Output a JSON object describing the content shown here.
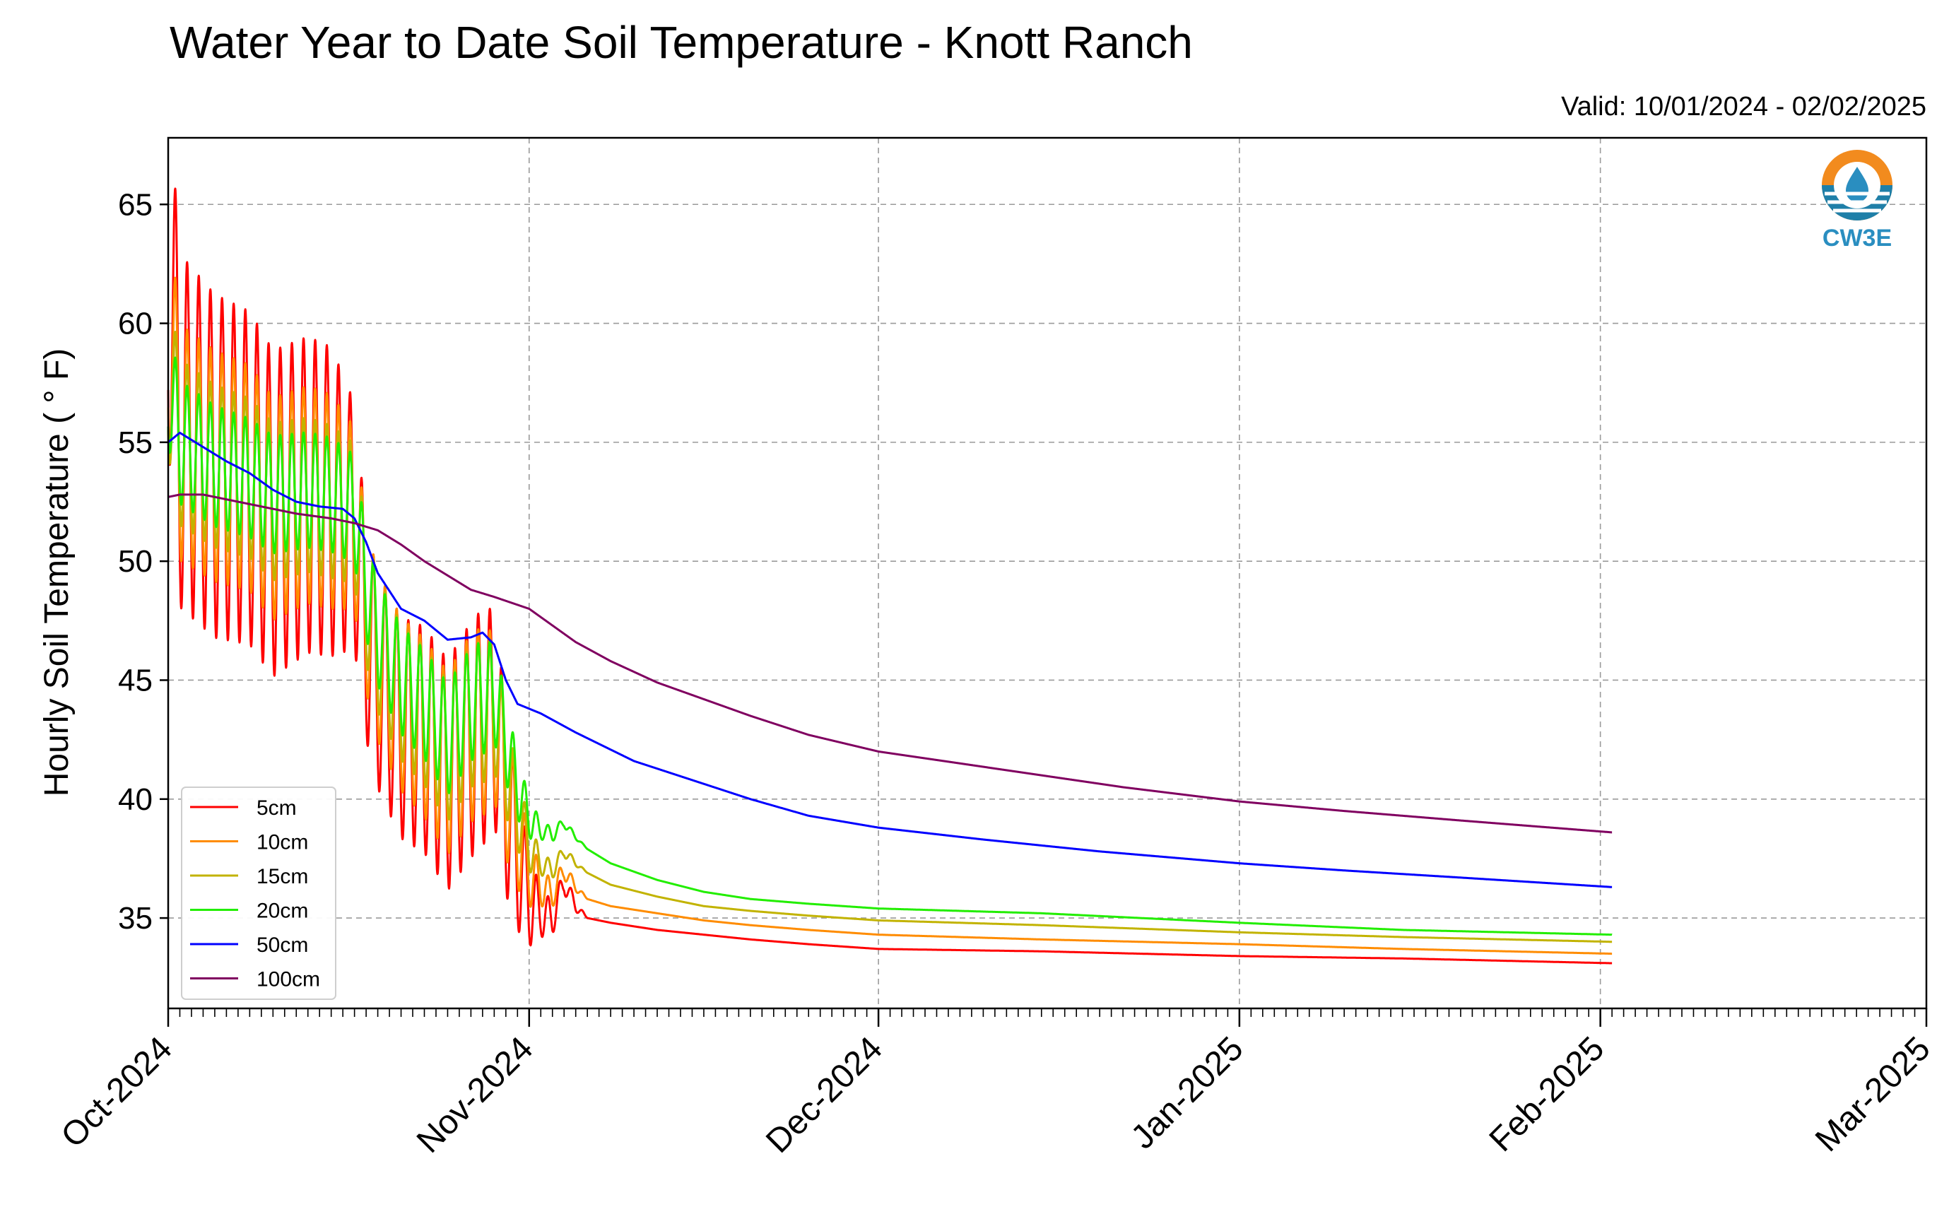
{
  "chart_data": {
    "type": "line",
    "title": "Water Year to Date Soil Temperature - Knott Ranch",
    "subtitle": "Valid: 10/01/2024 - 02/02/2025",
    "ylabel": "Hourly Soil Temperature ( ° F)",
    "xlabel": "",
    "x_axis_type": "date",
    "xlim": [
      "2024-10-01",
      "2025-03-01"
    ],
    "ylim": [
      31.2,
      67.8
    ],
    "yticks": [
      35,
      40,
      45,
      50,
      55,
      60,
      65
    ],
    "xticks": [
      {
        "date": "2024-10-01",
        "label": "Oct-2024"
      },
      {
        "date": "2024-11-01",
        "label": "Nov-2024"
      },
      {
        "date": "2024-12-01",
        "label": "Dec-2024"
      },
      {
        "date": "2025-01-01",
        "label": "Jan-2025"
      },
      {
        "date": "2025-02-01",
        "label": "Feb-2025"
      },
      {
        "date": "2025-03-01",
        "label": "Mar-2025"
      }
    ],
    "grid": true,
    "legend_position": "lower-left",
    "logo_text": "CW3E",
    "series": [
      {
        "name": "5cm",
        "color": "#ff0000",
        "daily_amplitude": [
          [
            0,
            7.5
          ],
          [
            14,
            6.5
          ],
          [
            17,
            4.5
          ],
          [
            27,
            5
          ],
          [
            29,
            4
          ],
          [
            32,
            1
          ],
          [
            36,
            0
          ]
        ],
        "points": [
          [
            "2024-10-01",
            62.5
          ],
          [
            "2024-10-02",
            55.5
          ],
          [
            "2024-10-05",
            54
          ],
          [
            "2024-10-08",
            53.5
          ],
          [
            "2024-10-10",
            52
          ],
          [
            "2024-10-13",
            52.8
          ],
          [
            "2024-10-15",
            52.5
          ],
          [
            "2024-10-17",
            51.5
          ],
          [
            "2024-10-18",
            47
          ],
          [
            "2024-10-19",
            45
          ],
          [
            "2024-10-21",
            43
          ],
          [
            "2024-10-23",
            42.5
          ],
          [
            "2024-10-25",
            41
          ],
          [
            "2024-10-27",
            42.5
          ],
          [
            "2024-10-29",
            43.5
          ],
          [
            "2024-10-30",
            40
          ],
          [
            "2024-10-31",
            37.5
          ],
          [
            "2024-11-01",
            35.8
          ],
          [
            "2024-11-02",
            35.2
          ],
          [
            "2024-11-03",
            35
          ],
          [
            "2024-11-04",
            36.5
          ],
          [
            "2024-11-05",
            35.5
          ],
          [
            "2024-11-06",
            35
          ],
          [
            "2024-11-08",
            34.8
          ],
          [
            "2024-11-12",
            34.5
          ],
          [
            "2024-11-16",
            34.3
          ],
          [
            "2024-11-20",
            34.1
          ],
          [
            "2024-11-25",
            33.9
          ],
          [
            "2024-12-01",
            33.7
          ],
          [
            "2024-12-15",
            33.6
          ],
          [
            "2025-01-01",
            33.4
          ],
          [
            "2025-01-15",
            33.3
          ],
          [
            "2025-02-02",
            33.1
          ]
        ]
      },
      {
        "name": "10cm",
        "color": "#ff8c00",
        "daily_amplitude": [
          [
            0,
            5
          ],
          [
            14,
            4.5
          ],
          [
            17,
            3.5
          ],
          [
            27,
            4
          ],
          [
            29,
            3
          ],
          [
            32,
            0.8
          ],
          [
            36,
            0
          ]
        ],
        "points": [
          [
            "2024-10-01",
            60
          ],
          [
            "2024-10-02",
            55
          ],
          [
            "2024-10-05",
            54
          ],
          [
            "2024-10-08",
            53.5
          ],
          [
            "2024-10-10",
            52.2
          ],
          [
            "2024-10-13",
            52.8
          ],
          [
            "2024-10-15",
            52.5
          ],
          [
            "2024-10-17",
            51.8
          ],
          [
            "2024-10-18",
            48
          ],
          [
            "2024-10-19",
            46
          ],
          [
            "2024-10-21",
            44
          ],
          [
            "2024-10-23",
            43
          ],
          [
            "2024-10-25",
            41.5
          ],
          [
            "2024-10-27",
            43
          ],
          [
            "2024-10-29",
            43.5
          ],
          [
            "2024-10-30",
            40.5
          ],
          [
            "2024-10-31",
            38.5
          ],
          [
            "2024-11-01",
            37
          ],
          [
            "2024-11-02",
            36.3
          ],
          [
            "2024-11-03",
            36
          ],
          [
            "2024-11-04",
            37
          ],
          [
            "2024-11-05",
            36.3
          ],
          [
            "2024-11-06",
            35.8
          ],
          [
            "2024-11-08",
            35.5
          ],
          [
            "2024-11-12",
            35.2
          ],
          [
            "2024-11-16",
            34.9
          ],
          [
            "2024-11-20",
            34.7
          ],
          [
            "2024-11-25",
            34.5
          ],
          [
            "2024-12-01",
            34.3
          ],
          [
            "2024-12-15",
            34.1
          ],
          [
            "2025-01-01",
            33.9
          ],
          [
            "2025-01-15",
            33.7
          ],
          [
            "2025-02-02",
            33.5
          ]
        ]
      },
      {
        "name": "15cm",
        "color": "#c2b300",
        "daily_amplitude": [
          [
            0,
            3.5
          ],
          [
            14,
            3.2
          ],
          [
            17,
            2.8
          ],
          [
            27,
            3
          ],
          [
            29,
            2.2
          ],
          [
            32,
            0.5
          ],
          [
            36,
            0
          ]
        ],
        "points": [
          [
            "2024-10-01",
            58
          ],
          [
            "2024-10-02",
            55
          ],
          [
            "2024-10-05",
            54
          ],
          [
            "2024-10-08",
            53.5
          ],
          [
            "2024-10-10",
            52.5
          ],
          [
            "2024-10-13",
            52.8
          ],
          [
            "2024-10-15",
            52.5
          ],
          [
            "2024-10-17",
            52
          ],
          [
            "2024-10-18",
            48.5
          ],
          [
            "2024-10-19",
            46.5
          ],
          [
            "2024-10-21",
            44.5
          ],
          [
            "2024-10-23",
            43.5
          ],
          [
            "2024-10-25",
            42
          ],
          [
            "2024-10-27",
            43.5
          ],
          [
            "2024-10-29",
            43.8
          ],
          [
            "2024-10-30",
            41.5
          ],
          [
            "2024-10-31",
            39.5
          ],
          [
            "2024-11-01",
            38
          ],
          [
            "2024-11-02",
            37.3
          ],
          [
            "2024-11-03",
            37
          ],
          [
            "2024-11-04",
            37.8
          ],
          [
            "2024-11-05",
            37.3
          ],
          [
            "2024-11-06",
            36.9
          ],
          [
            "2024-11-08",
            36.4
          ],
          [
            "2024-11-12",
            35.9
          ],
          [
            "2024-11-16",
            35.5
          ],
          [
            "2024-11-20",
            35.3
          ],
          [
            "2024-11-25",
            35.1
          ],
          [
            "2024-12-01",
            34.9
          ],
          [
            "2024-12-15",
            34.7
          ],
          [
            "2025-01-01",
            34.4
          ],
          [
            "2025-01-15",
            34.2
          ],
          [
            "2025-02-02",
            34
          ]
        ]
      },
      {
        "name": "20cm",
        "color": "#22ee00",
        "daily_amplitude": [
          [
            0,
            2.6
          ],
          [
            14,
            2.4
          ],
          [
            17,
            2.2
          ],
          [
            27,
            2.4
          ],
          [
            29,
            1.8
          ],
          [
            32,
            0.4
          ],
          [
            36,
            0
          ]
        ],
        "points": [
          [
            "2024-10-01",
            57.5
          ],
          [
            "2024-10-02",
            55
          ],
          [
            "2024-10-05",
            54
          ],
          [
            "2024-10-08",
            53.5
          ],
          [
            "2024-10-10",
            52.8
          ],
          [
            "2024-10-13",
            53
          ],
          [
            "2024-10-15",
            52.8
          ],
          [
            "2024-10-17",
            52.2
          ],
          [
            "2024-10-18",
            49
          ],
          [
            "2024-10-19",
            47
          ],
          [
            "2024-10-21",
            45
          ],
          [
            "2024-10-23",
            44
          ],
          [
            "2024-10-25",
            42.5
          ],
          [
            "2024-10-27",
            44
          ],
          [
            "2024-10-29",
            44.5
          ],
          [
            "2024-10-30",
            42.5
          ],
          [
            "2024-10-31",
            40.5
          ],
          [
            "2024-11-01",
            39.2
          ],
          [
            "2024-11-02",
            38.7
          ],
          [
            "2024-11-03",
            38.5
          ],
          [
            "2024-11-04",
            39
          ],
          [
            "2024-11-05",
            38.4
          ],
          [
            "2024-11-06",
            37.9
          ],
          [
            "2024-11-08",
            37.3
          ],
          [
            "2024-11-12",
            36.6
          ],
          [
            "2024-11-16",
            36.1
          ],
          [
            "2024-11-20",
            35.8
          ],
          [
            "2024-11-25",
            35.6
          ],
          [
            "2024-12-01",
            35.4
          ],
          [
            "2024-12-15",
            35.2
          ],
          [
            "2025-01-01",
            34.8
          ],
          [
            "2025-01-15",
            34.5
          ],
          [
            "2025-02-02",
            34.3
          ]
        ]
      },
      {
        "name": "50cm",
        "color": "#0000ff",
        "daily_amplitude": [],
        "points": [
          [
            "2024-10-01",
            55
          ],
          [
            "2024-10-02",
            55.4
          ],
          [
            "2024-10-04",
            54.8
          ],
          [
            "2024-10-06",
            54.2
          ],
          [
            "2024-10-08",
            53.7
          ],
          [
            "2024-10-10",
            53
          ],
          [
            "2024-10-12",
            52.5
          ],
          [
            "2024-10-14",
            52.3
          ],
          [
            "2024-10-16",
            52.2
          ],
          [
            "2024-10-17",
            51.8
          ],
          [
            "2024-10-18",
            50.8
          ],
          [
            "2024-10-19",
            49.5
          ],
          [
            "2024-10-21",
            48
          ],
          [
            "2024-10-23",
            47.5
          ],
          [
            "2024-10-25",
            46.7
          ],
          [
            "2024-10-27",
            46.8
          ],
          [
            "2024-10-28",
            47
          ],
          [
            "2024-10-29",
            46.5
          ],
          [
            "2024-10-30",
            45
          ],
          [
            "2024-10-31",
            44
          ],
          [
            "2024-11-02",
            43.6
          ],
          [
            "2024-11-05",
            42.8
          ],
          [
            "2024-11-10",
            41.6
          ],
          [
            "2024-11-15",
            40.8
          ],
          [
            "2024-11-20",
            40
          ],
          [
            "2024-11-25",
            39.3
          ],
          [
            "2024-12-01",
            38.8
          ],
          [
            "2024-12-10",
            38.3
          ],
          [
            "2024-12-20",
            37.8
          ],
          [
            "2025-01-01",
            37.3
          ],
          [
            "2025-01-10",
            37
          ],
          [
            "2025-01-20",
            36.7
          ],
          [
            "2025-02-02",
            36.3
          ]
        ]
      },
      {
        "name": "100cm",
        "color": "#800060",
        "daily_amplitude": [],
        "points": [
          [
            "2024-10-01",
            52.7
          ],
          [
            "2024-10-02",
            52.8
          ],
          [
            "2024-10-04",
            52.8
          ],
          [
            "2024-10-06",
            52.6
          ],
          [
            "2024-10-09",
            52.3
          ],
          [
            "2024-10-12",
            52
          ],
          [
            "2024-10-15",
            51.8
          ],
          [
            "2024-10-17",
            51.6
          ],
          [
            "2024-10-19",
            51.3
          ],
          [
            "2024-10-21",
            50.7
          ],
          [
            "2024-10-23",
            50
          ],
          [
            "2024-10-25",
            49.4
          ],
          [
            "2024-10-27",
            48.8
          ],
          [
            "2024-10-29",
            48.5
          ],
          [
            "2024-11-01",
            48
          ],
          [
            "2024-11-03",
            47.3
          ],
          [
            "2024-11-05",
            46.6
          ],
          [
            "2024-11-08",
            45.8
          ],
          [
            "2024-11-12",
            44.9
          ],
          [
            "2024-11-16",
            44.2
          ],
          [
            "2024-11-20",
            43.5
          ],
          [
            "2024-11-25",
            42.7
          ],
          [
            "2024-12-01",
            42
          ],
          [
            "2024-12-08",
            41.5
          ],
          [
            "2024-12-15",
            41
          ],
          [
            "2024-12-22",
            40.5
          ],
          [
            "2025-01-01",
            39.9
          ],
          [
            "2025-01-10",
            39.5
          ],
          [
            "2025-01-20",
            39.1
          ],
          [
            "2025-02-02",
            38.6
          ]
        ]
      }
    ]
  }
}
